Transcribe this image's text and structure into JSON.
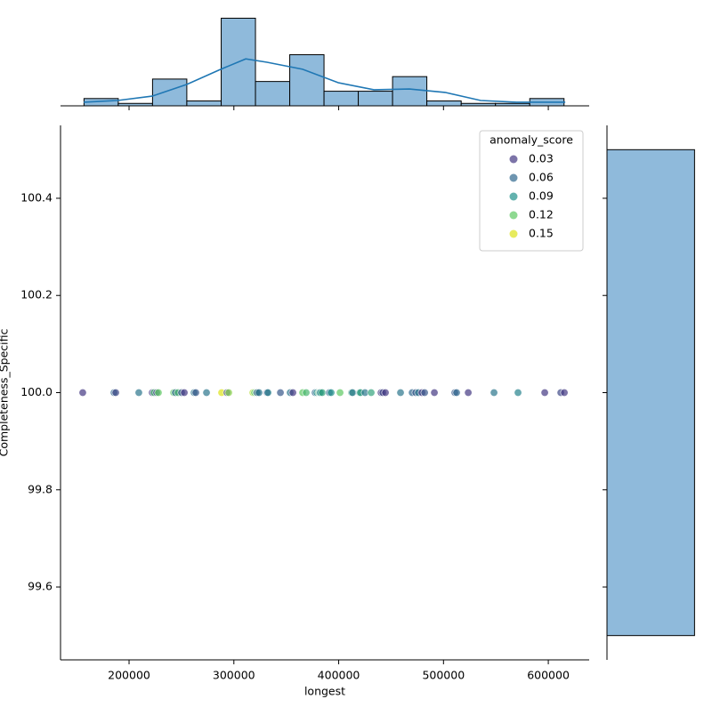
{
  "chart_data": [
    {
      "type": "scatter",
      "xlabel": "longest",
      "ylabel": "Completeness_Specific",
      "xlim": [
        134600,
        639000
      ],
      "ylim": [
        99.45,
        100.55
      ],
      "xticks": [
        200000,
        300000,
        400000,
        500000,
        600000
      ],
      "yticks": [
        99.6,
        99.8,
        {
          "value": 100,
          "label": "100.0"
        },
        100.2,
        100.4
      ],
      "x": [
        155800,
        185600,
        187300,
        209300,
        222100,
        223800,
        226300,
        228000,
        242500,
        244200,
        246700,
        250100,
        252700,
        262000,
        263700,
        273900,
        288300,
        293400,
        295100,
        318100,
        319700,
        321400,
        322300,
        324000,
        331600,
        332500,
        344400,
        353700,
        356300,
        365600,
        369000,
        377500,
        379200,
        380900,
        381800,
        382600,
        384300,
        391100,
        392800,
        401300,
        412300,
        413200,
        420000,
        420800,
        425100,
        431000,
        440400,
        442100,
        444600,
        459000,
        470100,
        473500,
        476000,
        479400,
        482000,
        491300,
        510800,
        512500,
        523600,
        548200,
        571100,
        596600,
        611900,
        615300
      ],
      "y": [
        100,
        100,
        100,
        100,
        100,
        100,
        100,
        100,
        100,
        100,
        100,
        100,
        100,
        100,
        100,
        100,
        100,
        100,
        100,
        100,
        100,
        100,
        100,
        100,
        100,
        100,
        100,
        100,
        100,
        100,
        100,
        100,
        100,
        100,
        100,
        100,
        100,
        100,
        100,
        100,
        100,
        100,
        100,
        100,
        100,
        100,
        100,
        100,
        100,
        100,
        100,
        100,
        100,
        100,
        100,
        100,
        100,
        100,
        100,
        100,
        100,
        100,
        100,
        100
      ],
      "hue": [
        0.02,
        0.06,
        0.04,
        0.07,
        0.03,
        0.11,
        0.04,
        0.12,
        0.12,
        0.06,
        0.11,
        0.05,
        0.03,
        0.07,
        0.05,
        0.07,
        0.15,
        0.04,
        0.13,
        0.14,
        0.12,
        0.1,
        0.05,
        0.07,
        0.04,
        0.08,
        0.05,
        0.07,
        0.03,
        0.12,
        0.11,
        0.06,
        0.09,
        0.11,
        0.1,
        0.08,
        0.1,
        0.06,
        0.09,
        0.12,
        0.1,
        0.07,
        0.08,
        0.1,
        0.07,
        0.1,
        0.03,
        0.04,
        0.02,
        0.07,
        0.06,
        0.05,
        0.07,
        0.02,
        0.05,
        0.03,
        0.05,
        0.06,
        0.02,
        0.07,
        0.08,
        0.03,
        0.04,
        0.03
      ],
      "legend": {
        "title": "anomaly_score",
        "loc": "upper right",
        "levels": [
          0.03,
          0.06,
          0.09,
          0.12,
          0.15
        ],
        "colors": [
          "#443983",
          "#31688e",
          "#21918c",
          "#5ec962",
          "#dde318"
        ]
      }
    },
    {
      "type": "histogram",
      "orientation": "vertical",
      "color": "#8fbadb",
      "bins": [
        157000,
        189700,
        222400,
        255100,
        287900,
        320600,
        353300,
        386000,
        418700,
        451400,
        484100,
        516900,
        549600,
        582300,
        615000
      ],
      "counts": [
        3,
        1,
        11,
        2,
        36,
        10,
        21,
        6,
        6,
        12,
        2,
        1,
        1,
        3
      ],
      "ylim": [
        0,
        38
      ],
      "kde": {
        "color": "#1f77b4",
        "x": [
          156700,
          189000,
          222100,
          255200,
          287500,
          311300,
          331600,
          365600,
          399600,
          433600,
          467500,
          501500,
          535500,
          569500,
          616200
        ],
        "values": [
          1.5,
          2.2,
          4,
          8.8,
          15,
          19.3,
          17.9,
          15,
          9.5,
          6.6,
          6.9,
          5.5,
          2.2,
          1.5,
          1.5
        ]
      }
    },
    {
      "type": "histogram",
      "orientation": "horizontal",
      "color": "#8fbadb",
      "bins": [
        99.5,
        100.5
      ],
      "counts": [
        64
      ],
      "xlim": [
        0,
        67
      ]
    }
  ]
}
